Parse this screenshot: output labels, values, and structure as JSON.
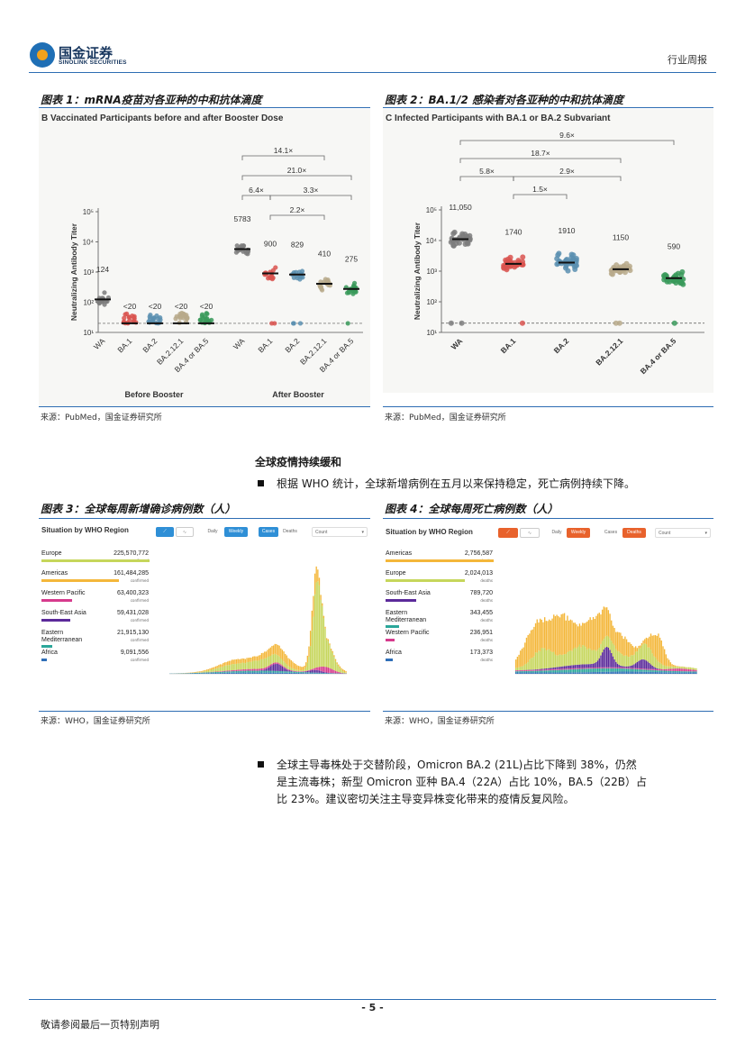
{
  "header": {
    "logo_cn": "国金证券",
    "logo_en": "SINOLINK SECURITIES",
    "report_type": "行业周报"
  },
  "fig1": {
    "caption": "图表 1：mRNA疫苗对各亚种的中和抗体滴度",
    "panel_label": "B   Vaccinated Participants before and after Booster Dose",
    "y_axis_label": "Neutralizing Antibody Titer",
    "y_ticks": [
      "10⁵",
      "10⁴",
      "10³",
      "10²",
      "10¹"
    ],
    "x_labels": [
      "WA",
      "BA.1",
      "BA.2",
      "BA.2.12.1",
      "BA.4 or BA.5",
      "WA",
      "BA.1",
      "BA.2",
      "BA.2.12.1",
      "BA.4 or BA.5"
    ],
    "group_labels": [
      "Before Booster",
      "After Booster"
    ],
    "brackets": [
      "14.1×",
      "21.0×",
      "6.4×",
      "3.3×",
      "2.2×"
    ],
    "source": "来源：PubMed，国金证券研究所"
  },
  "fig2": {
    "caption": "图表 2：BA.1/2 感染者对各亚种的中和抗体滴度",
    "panel_label": "C   Infected Participants with BA.1 or BA.2 Subvariant",
    "y_axis_label": "Neutralizing Antibody Titer",
    "y_ticks": [
      "10⁵",
      "10⁴",
      "10³",
      "10²",
      "10¹"
    ],
    "x_labels": [
      "WA",
      "BA.1",
      "BA.2",
      "BA.2.12.1",
      "BA.4 or BA.5"
    ],
    "brackets": [
      "9.6×",
      "18.7×",
      "5.8×",
      "2.9×",
      "1.5×"
    ],
    "source": "来源：PubMed，国金证券研究所"
  },
  "chart_data": [
    {
      "type": "scatter",
      "title": "Vaccinated Participants before and after Booster Dose",
      "ylabel": "Neutralizing Antibody Titer",
      "y_scale": "log",
      "ylim": [
        10,
        100000
      ],
      "categories": [
        "WA",
        "BA.1",
        "BA.2",
        "BA.2.12.1",
        "BA.4 or BA.5",
        "WA",
        "BA.1",
        "BA.2",
        "BA.2.12.1",
        "BA.4 or BA.5"
      ],
      "series": [
        {
          "name": "Before Booster",
          "values": [
            124,
            20,
            20,
            20,
            20
          ],
          "labels": [
            "124",
            "<20",
            "<20",
            "<20",
            "<20"
          ]
        },
        {
          "name": "After Booster",
          "values": [
            5783,
            900,
            829,
            410,
            275
          ],
          "labels": [
            "5783",
            "900",
            "829",
            "410",
            "275"
          ]
        }
      ],
      "colors": [
        "#7d7d7d",
        "#d9534f",
        "#5b8fb0",
        "#b7a98a",
        "#3a9a5a"
      ]
    },
    {
      "type": "scatter",
      "title": "Infected Participants with BA.1 or BA.2 Subvariant",
      "ylabel": "Neutralizing Antibody Titer",
      "y_scale": "log",
      "ylim": [
        10,
        100000
      ],
      "categories": [
        "WA",
        "BA.1",
        "BA.2",
        "BA.2.12.1",
        "BA.4 or BA.5"
      ],
      "series": [
        {
          "values": [
            11050,
            1740,
            1910,
            1150,
            590
          ],
          "labels": [
            "11,050",
            "1740",
            "1910",
            "1150",
            "590"
          ]
        }
      ],
      "colors": [
        "#7d7d7d",
        "#d9534f",
        "#5b8fb0",
        "#b7a98a",
        "#3a9a5a"
      ]
    },
    {
      "type": "bar",
      "title": "Situation by WHO Region",
      "stacked": true,
      "series": [
        {
          "name": "Europe",
          "total": 225570772,
          "color": "#c6d65b"
        },
        {
          "name": "Americas",
          "total": 161484285,
          "color": "#f4b73a"
        },
        {
          "name": "Western Pacific",
          "total": 63400323,
          "color": "#d63a8d"
        },
        {
          "name": "South-East Asia",
          "total": 59431028,
          "color": "#5b2a9a"
        },
        {
          "name": "Eastern Mediterranean",
          "total": 21915130,
          "color": "#2ba79a"
        },
        {
          "name": "Africa",
          "total": 9091556,
          "color": "#2f6fb8"
        }
      ]
    },
    {
      "type": "bar",
      "title": "Situation by WHO Region",
      "stacked": true,
      "series": [
        {
          "name": "Americas",
          "total": 2756587,
          "color": "#f4b73a"
        },
        {
          "name": "Europe",
          "total": 2024013,
          "color": "#c6d65b"
        },
        {
          "name": "South-East Asia",
          "total": 789720,
          "color": "#5b2a9a"
        },
        {
          "name": "Eastern Mediterranean",
          "total": 343455,
          "color": "#2ba79a"
        },
        {
          "name": "Western Pacific",
          "total": 236951,
          "color": "#d63a8d"
        },
        {
          "name": "Africa",
          "total": 173373,
          "color": "#2f6fb8"
        }
      ]
    }
  ],
  "section": {
    "heading": "全球疫情持续缓和",
    "para1": "根据 WHO 统计，全球新增病例在五月以来保持稳定，死亡病例持续下降。",
    "para2_line1": "全球主导毒株处于交替阶段，Omicron BA.2 (21L)占比下降到 38%，仍然",
    "para2_line2": "是主流毒株；新型 Omicron 亚种 BA.4（22A）占比 10%，BA.5（22B）占",
    "para2_line3": "比 23%。建议密切关注主导变异株变化带来的疫情反复风险。"
  },
  "fig3": {
    "caption": "图表 3：全球每周新增确诊病例数（人）",
    "panel_title": "Situation by WHO Region",
    "toggle_daily": "Daily",
    "toggle_weekly": "Weekly",
    "toggle_cases": "Cases",
    "toggle_deaths": "Deaths",
    "select_count": "Count",
    "unit_sub": "confirmed",
    "regions": [
      {
        "name": "Europe",
        "value": "225,570,772"
      },
      {
        "name": "Americas",
        "value": "161,484,285"
      },
      {
        "name": "Western Pacific",
        "value": "63,400,323"
      },
      {
        "name": "South-East Asia",
        "value": "59,431,028"
      },
      {
        "name": "Eastern Mediterranean",
        "value": "21,915,130"
      },
      {
        "name": "Africa",
        "value": "9,091,556"
      }
    ],
    "source": "来源：WHO，国金证券研究所"
  },
  "fig4": {
    "caption": "图表 4：全球每周死亡病例数（人）",
    "panel_title": "Situation by WHO Region",
    "toggle_daily": "Daily",
    "toggle_weekly": "Weekly",
    "toggle_cases": "Cases",
    "toggle_deaths": "Deaths",
    "select_count": "Count",
    "unit_sub": "deaths",
    "regions": [
      {
        "name": "Americas",
        "value": "2,756,587"
      },
      {
        "name": "Europe",
        "value": "2,024,013"
      },
      {
        "name": "South-East Asia",
        "value": "789,720"
      },
      {
        "name": "Eastern Mediterranean",
        "value": "343,455"
      },
      {
        "name": "Western Pacific",
        "value": "236,951"
      },
      {
        "name": "Africa",
        "value": "173,373"
      }
    ],
    "source": "来源：WHO，国金证券研究所"
  },
  "footer": {
    "page": "- 5 -",
    "note": "敬请参阅最后一页特别声明"
  }
}
